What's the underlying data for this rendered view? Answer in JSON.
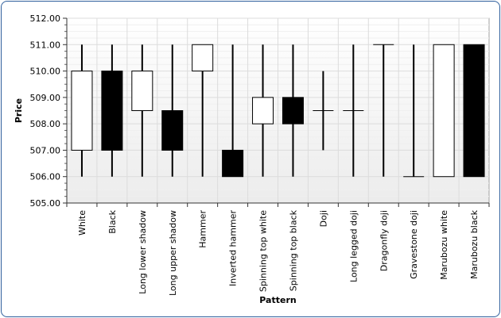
{
  "chart_data": {
    "type": "candlestick",
    "xlabel": "Pattern",
    "ylabel": "Price",
    "ylim": [
      505,
      512
    ],
    "y_tick_step": 1,
    "y_tick_labels": [
      "505.00",
      "506.00",
      "507.00",
      "508.00",
      "509.00",
      "510.00",
      "511.00",
      "512.00"
    ],
    "grid": true,
    "colors": {
      "rising": "#ffffff",
      "falling": "#000000",
      "stroke": "#000000",
      "grid": "#dcdcdc",
      "plot_bg_top": "#ffffff",
      "plot_bg_bottom": "#ececec"
    },
    "categories": [
      "White",
      "Black",
      "Long lower shadow",
      "Long upper shadow",
      "Hammer",
      "Inverted hammer",
      "Spinning top white",
      "Spinning top black",
      "Doji",
      "Long legged doji",
      "Dragonfly doji",
      "Gravestone doji",
      "Marubozu white",
      "Marubozu black"
    ],
    "candles": [
      {
        "open": 507.0,
        "high": 511.0,
        "low": 506.0,
        "close": 510.0
      },
      {
        "open": 510.0,
        "high": 511.0,
        "low": 506.0,
        "close": 507.0
      },
      {
        "open": 508.5,
        "high": 511.0,
        "low": 506.0,
        "close": 510.0
      },
      {
        "open": 508.5,
        "high": 511.0,
        "low": 506.0,
        "close": 507.0
      },
      {
        "open": 510.0,
        "high": 511.0,
        "low": 506.0,
        "close": 511.0
      },
      {
        "open": 507.0,
        "high": 511.0,
        "low": 506.0,
        "close": 506.0
      },
      {
        "open": 508.0,
        "high": 511.0,
        "low": 506.0,
        "close": 509.0
      },
      {
        "open": 509.0,
        "high": 511.0,
        "low": 506.0,
        "close": 508.0
      },
      {
        "open": 508.5,
        "high": 510.0,
        "low": 507.0,
        "close": 508.5
      },
      {
        "open": 508.5,
        "high": 511.0,
        "low": 506.0,
        "close": 508.5
      },
      {
        "open": 511.0,
        "high": 511.0,
        "low": 506.0,
        "close": 511.0
      },
      {
        "open": 506.0,
        "high": 511.0,
        "low": 506.0,
        "close": 506.0
      },
      {
        "open": 506.0,
        "high": 511.0,
        "low": 506.0,
        "close": 511.0
      },
      {
        "open": 511.0,
        "high": 511.0,
        "low": 506.0,
        "close": 506.0
      }
    ]
  }
}
